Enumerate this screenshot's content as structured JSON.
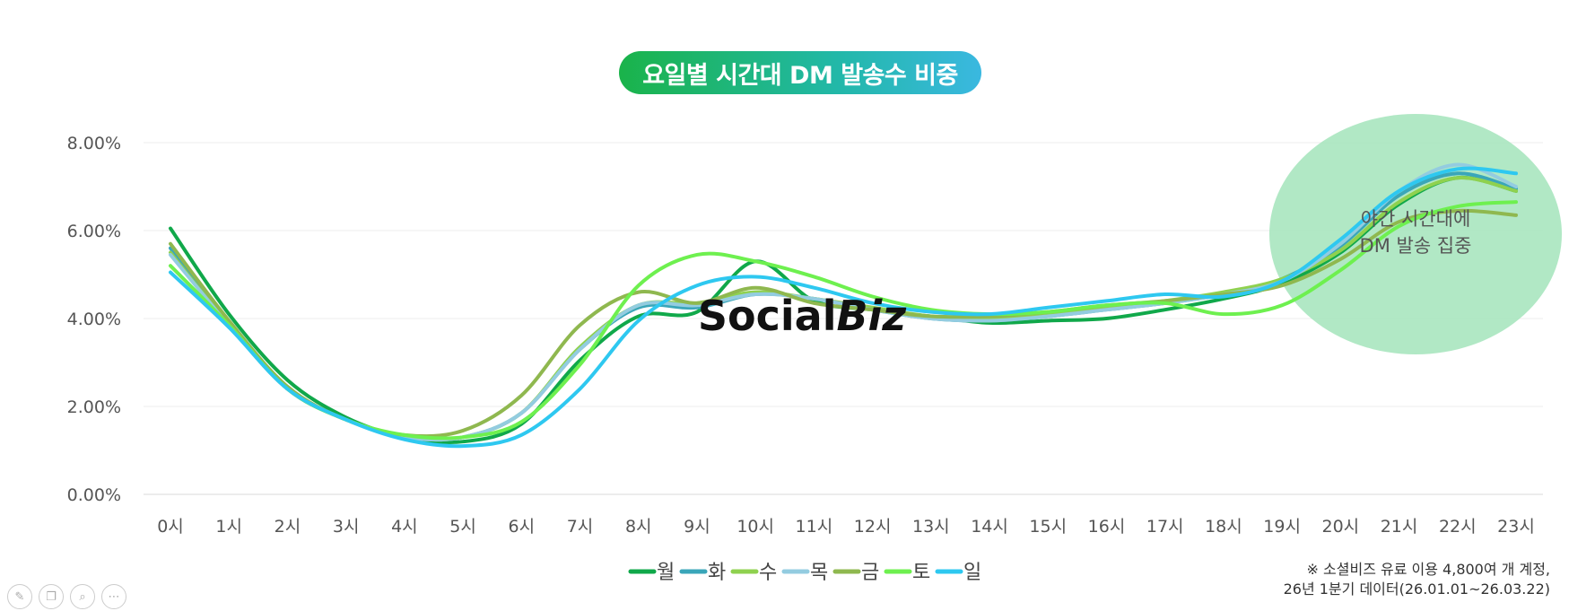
{
  "title": "요일별 시간대 DM 발송수 비중",
  "annotation": {
    "line1": "야간 시간대에",
    "line2": "DM 발송 집중"
  },
  "watermark": {
    "part1": "Social",
    "part2": "Biz"
  },
  "footnote": {
    "line1": "※ 소셜비즈 유료 이용 4,800여 개 계정,",
    "line2": "26년 1분기 데이터(26.01.01~26.03.22)"
  },
  "toolbar": [
    "pen-icon",
    "copy-icon",
    "zoom-icon",
    "more-icon"
  ],
  "chart_data": {
    "type": "line",
    "title": "요일별 시간대 DM 발송수 비중",
    "categories": [
      "0시",
      "1시",
      "2시",
      "3시",
      "4시",
      "5시",
      "6시",
      "7시",
      "8시",
      "9시",
      "10시",
      "11시",
      "12시",
      "13시",
      "14시",
      "15시",
      "16시",
      "17시",
      "18시",
      "19시",
      "20시",
      "21시",
      "22시",
      "23시"
    ],
    "ylim": [
      0,
      8
    ],
    "yticks": [
      "0.00%",
      "2.00%",
      "4.00%",
      "6.00%",
      "8.00%"
    ],
    "grid": true,
    "legend_position": "bottom",
    "series": [
      {
        "name": "월",
        "color": "#10a84a",
        "values": [
          6.05,
          4.1,
          2.6,
          1.75,
          1.3,
          1.2,
          1.6,
          3.05,
          4.05,
          4.15,
          5.3,
          4.4,
          4.2,
          4.05,
          3.9,
          3.95,
          4.0,
          4.2,
          4.45,
          4.8,
          5.5,
          6.6,
          7.2,
          6.9
        ]
      },
      {
        "name": "화",
        "color": "#3aa6b9",
        "values": [
          5.6,
          3.9,
          2.4,
          1.7,
          1.3,
          1.3,
          1.85,
          3.3,
          4.25,
          4.25,
          4.55,
          4.45,
          4.2,
          4.0,
          3.95,
          4.05,
          4.2,
          4.35,
          4.55,
          4.9,
          5.65,
          6.8,
          7.3,
          6.95
        ]
      },
      {
        "name": "수",
        "color": "#8fd14f",
        "values": [
          5.5,
          3.85,
          2.4,
          1.7,
          1.3,
          1.3,
          1.85,
          3.35,
          4.3,
          4.35,
          4.6,
          4.45,
          4.25,
          4.05,
          4.0,
          4.1,
          4.25,
          4.4,
          4.6,
          4.9,
          5.55,
          6.65,
          7.2,
          6.9
        ]
      },
      {
        "name": "목",
        "color": "#93cce0",
        "values": [
          5.45,
          3.85,
          2.4,
          1.7,
          1.3,
          1.3,
          1.85,
          3.3,
          4.3,
          4.3,
          4.55,
          4.45,
          4.2,
          4.0,
          3.95,
          4.05,
          4.2,
          4.35,
          4.55,
          4.85,
          5.7,
          6.9,
          7.5,
          7.0
        ]
      },
      {
        "name": "금",
        "color": "#8fb84f",
        "values": [
          5.7,
          3.95,
          2.45,
          1.7,
          1.35,
          1.45,
          2.25,
          3.85,
          4.6,
          4.35,
          4.7,
          4.35,
          4.2,
          4.05,
          4.05,
          4.15,
          4.3,
          4.4,
          4.55,
          4.75,
          5.35,
          6.2,
          6.45,
          6.35
        ]
      },
      {
        "name": "토",
        "color": "#6ef04f",
        "values": [
          5.2,
          3.85,
          2.4,
          1.7,
          1.35,
          1.3,
          1.65,
          2.95,
          4.75,
          5.45,
          5.3,
          4.95,
          4.5,
          4.2,
          4.1,
          4.15,
          4.3,
          4.35,
          4.1,
          4.3,
          5.1,
          6.1,
          6.55,
          6.65
        ]
      },
      {
        "name": "일",
        "color": "#2ec8f0",
        "values": [
          5.05,
          3.8,
          2.4,
          1.7,
          1.25,
          1.1,
          1.35,
          2.4,
          3.95,
          4.75,
          4.95,
          4.7,
          4.35,
          4.15,
          4.1,
          4.25,
          4.4,
          4.55,
          4.5,
          4.85,
          5.8,
          6.9,
          7.4,
          7.3
        ]
      }
    ]
  }
}
